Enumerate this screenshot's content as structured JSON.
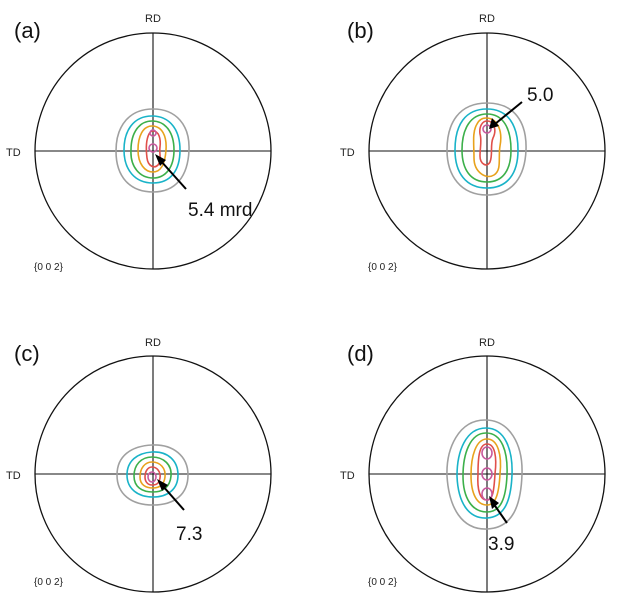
{
  "figure": {
    "panels": [
      {
        "id": "a",
        "label": "(a)",
        "rd_label": "RD",
        "td_label": "TD",
        "plane_label": "{0 0 2}",
        "max_value": "5.4 mrd",
        "contour_colors": [
          "#a0a0a0",
          "#19b3c8",
          "#3cb04a",
          "#e8a21c",
          "#e0504a",
          "#c85a9e"
        ]
      },
      {
        "id": "b",
        "label": "(b)",
        "rd_label": "RD",
        "td_label": "TD",
        "plane_label": "{0 0 2}",
        "max_value": "5.0",
        "contour_colors": [
          "#a0a0a0",
          "#19b3c8",
          "#3cb04a",
          "#e8a21c",
          "#e0504a",
          "#c85a9e"
        ]
      },
      {
        "id": "c",
        "label": "(c)",
        "rd_label": "RD",
        "td_label": "TD",
        "plane_label": "{0 0 2}",
        "max_value": "7.3",
        "contour_colors": [
          "#a0a0a0",
          "#19b3c8",
          "#3cb04a",
          "#e8a21c",
          "#e0504a",
          "#c85a9e"
        ]
      },
      {
        "id": "d",
        "label": "(d)",
        "rd_label": "RD",
        "td_label": "TD",
        "plane_label": "{0 0 2}",
        "max_value": "3.9",
        "contour_colors": [
          "#a0a0a0",
          "#19b3c8",
          "#3cb04a",
          "#e8a21c",
          "#e0504a",
          "#c85a9e"
        ]
      }
    ]
  }
}
